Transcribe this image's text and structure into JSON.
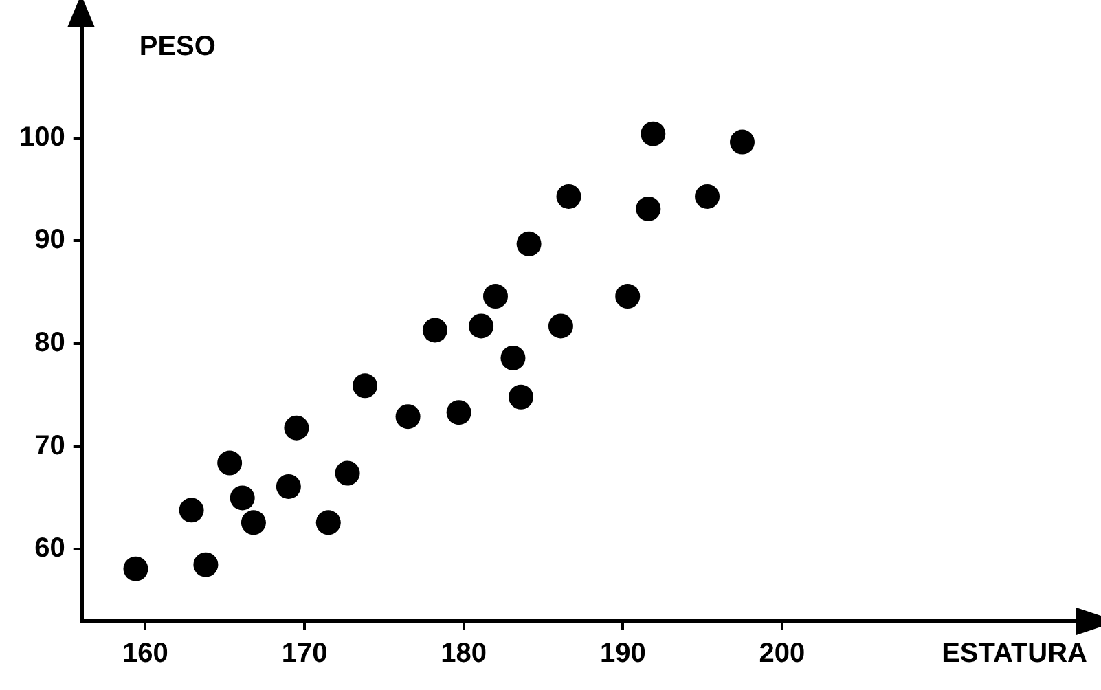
{
  "chart_data": {
    "type": "scatter",
    "xlabel": "ESTATURA",
    "ylabel": "PESO",
    "xlim": [
      156,
      219
    ],
    "ylim": [
      53,
      111
    ],
    "xticks": [
      160,
      170,
      180,
      190,
      200
    ],
    "yticks": [
      60,
      70,
      80,
      90,
      100
    ],
    "grid": false,
    "legend": false,
    "marker": "circle",
    "series": [
      {
        "color": "#000000",
        "x": [
          159.4,
          163.8,
          162.9,
          165.3,
          166.1,
          166.8,
          169.0,
          169.5,
          171.5,
          172.7,
          173.8,
          176.5,
          178.2,
          179.7,
          181.1,
          182.0,
          183.1,
          183.6,
          184.1,
          186.6,
          186.1,
          190.3,
          191.6,
          191.9,
          195.3,
          197.5
        ],
        "values": [
          58.1,
          58.5,
          63.8,
          68.4,
          65.0,
          62.6,
          66.1,
          71.8,
          62.6,
          67.4,
          75.9,
          72.9,
          81.3,
          73.3,
          81.7,
          84.6,
          78.6,
          74.8,
          89.7,
          94.3,
          81.7,
          84.6,
          93.1,
          100.4,
          94.3,
          99.6
        ]
      }
    ]
  }
}
